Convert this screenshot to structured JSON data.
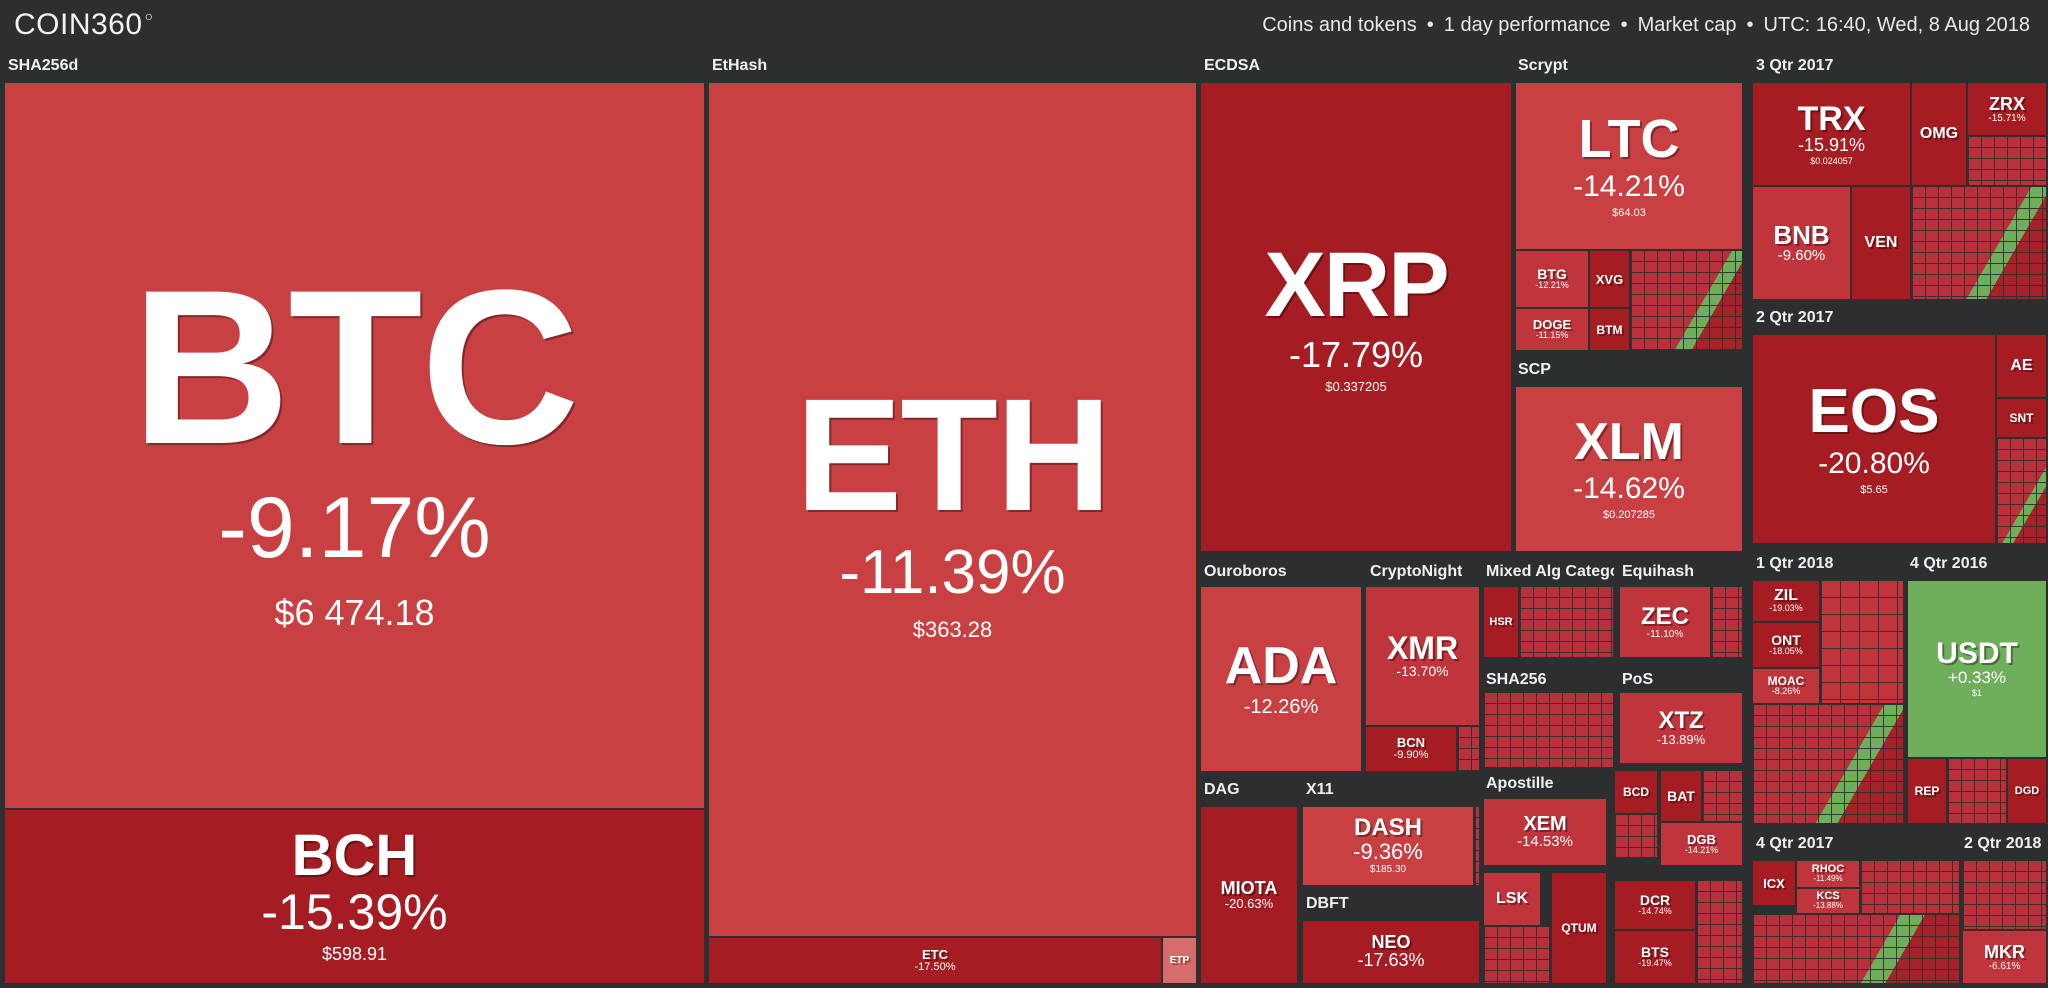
{
  "header": {
    "logo": "COIN360",
    "logo_mark": "○",
    "scope": "Coins and tokens",
    "period": "1 day performance",
    "metric": "Market cap",
    "datetime": "UTC: 16:40, Wed, 8 Aug 2018",
    "separator": "•"
  },
  "colors": {
    "background": "#2d2e30",
    "mild_red": "#c94043",
    "mid_red": "#b8303a",
    "deep_red": "#a51d22",
    "green": "#6fae5a"
  },
  "groups": {
    "sha256d": "SHA256d",
    "ethash": "EtHash",
    "ecdsa": "ECDSA",
    "scrypt": "Scrypt",
    "q3_2017": "3 Qtr 2017",
    "scp": "SCP",
    "q2_2017": "2 Qtr 2017",
    "ouroboros": "Ouroboros",
    "cryptonight": "CryptoNight",
    "mixed": "Mixed Alg Catego",
    "equihash": "Equihash",
    "q1_2018": "1 Qtr 2018",
    "q4_2016": "4 Qtr 2016",
    "sha256": "SHA256",
    "pos": "PoS",
    "dag": "DAG",
    "x11": "X11",
    "apostille": "Apostille",
    "dbft": "DBFT",
    "q4_2017": "4 Qtr 2017",
    "q2_2018b": "2 Qtr 2018"
  },
  "coins": {
    "btc": {
      "symbol": "BTC",
      "change": "-9.17%",
      "price": "$6 474.18"
    },
    "bch": {
      "symbol": "BCH",
      "change": "-15.39%",
      "price": "$598.91"
    },
    "eth": {
      "symbol": "ETH",
      "change": "-11.39%",
      "price": "$363.28"
    },
    "etc": {
      "symbol": "ETC",
      "change": "-17.50%",
      "price": ""
    },
    "etp": {
      "symbol": "ETP",
      "change": "",
      "price": ""
    },
    "xrp": {
      "symbol": "XRP",
      "change": "-17.79%",
      "price": "$0.337205"
    },
    "ltc": {
      "symbol": "LTC",
      "change": "-14.21%",
      "price": "$64.03"
    },
    "btg": {
      "symbol": "BTG",
      "change": "-12.21%",
      "price": ""
    },
    "xvg": {
      "symbol": "XVG",
      "change": "",
      "price": ""
    },
    "doge": {
      "symbol": "DOGE",
      "change": "-11.15%",
      "price": ""
    },
    "btm": {
      "symbol": "BTM",
      "change": "",
      "price": ""
    },
    "xlm": {
      "symbol": "XLM",
      "change": "-14.62%",
      "price": "$0.207285"
    },
    "trx": {
      "symbol": "TRX",
      "change": "-15.91%",
      "price": "$0.024057"
    },
    "omg": {
      "symbol": "OMG",
      "change": "",
      "price": ""
    },
    "zrx": {
      "symbol": "ZRX",
      "change": "-15.71%",
      "price": ""
    },
    "bnb": {
      "symbol": "BNB",
      "change": "-9.60%",
      "price": ""
    },
    "ven": {
      "symbol": "VEN",
      "change": "",
      "price": ""
    },
    "eos": {
      "symbol": "EOS",
      "change": "-20.80%",
      "price": "$5.65"
    },
    "ae": {
      "symbol": "AE",
      "change": "",
      "price": ""
    },
    "snt": {
      "symbol": "SNT",
      "change": "",
      "price": ""
    },
    "ada": {
      "symbol": "ADA",
      "change": "-12.26%",
      "price": ""
    },
    "xmr": {
      "symbol": "XMR",
      "change": "-13.70%",
      "price": ""
    },
    "bcn": {
      "symbol": "BCN",
      "change": "-9.90%",
      "price": ""
    },
    "hsr": {
      "symbol": "HSR",
      "change": "",
      "price": ""
    },
    "zec": {
      "symbol": "ZEC",
      "change": "-11.10%",
      "price": ""
    },
    "xtz": {
      "symbol": "XTZ",
      "change": "-13.89%",
      "price": ""
    },
    "zil": {
      "symbol": "ZIL",
      "change": "-19.03%",
      "price": ""
    },
    "ont": {
      "symbol": "ONT",
      "change": "-18.05%",
      "price": ""
    },
    "moac": {
      "symbol": "MOAC",
      "change": "-8.26%",
      "price": ""
    },
    "usdt": {
      "symbol": "USDT",
      "change": "+0.33%",
      "price": "$1"
    },
    "rep": {
      "symbol": "REP",
      "change": "",
      "price": ""
    },
    "dgd": {
      "symbol": "DGD",
      "change": "",
      "price": ""
    },
    "miota": {
      "symbol": "MIOTA",
      "change": "-20.63%",
      "price": ""
    },
    "dash": {
      "symbol": "DASH",
      "change": "-9.36%",
      "price": "$185.30"
    },
    "neo": {
      "symbol": "NEO",
      "change": "-17.63%",
      "price": ""
    },
    "xem": {
      "symbol": "XEM",
      "change": "-14.53%",
      "price": ""
    },
    "lsk": {
      "symbol": "LSK",
      "change": "",
      "price": ""
    },
    "qtum": {
      "symbol": "QTUM",
      "change": "",
      "price": ""
    },
    "bcd": {
      "symbol": "BCD",
      "change": "",
      "price": ""
    },
    "bat": {
      "symbol": "BAT",
      "change": "",
      "price": ""
    },
    "dgb": {
      "symbol": "DGB",
      "change": "-14.21%",
      "price": ""
    },
    "dcr": {
      "symbol": "DCR",
      "change": "-14.74%",
      "price": ""
    },
    "bts": {
      "symbol": "BTS",
      "change": "-19.47%",
      "price": ""
    },
    "icx": {
      "symbol": "ICX",
      "change": "",
      "price": ""
    },
    "rhoc": {
      "symbol": "RHOC",
      "change": "-11.49%",
      "price": ""
    },
    "kcs": {
      "symbol": "KCS",
      "change": "-13.88%",
      "price": ""
    },
    "mkr": {
      "symbol": "MKR",
      "change": "-6.61%",
      "price": ""
    }
  }
}
